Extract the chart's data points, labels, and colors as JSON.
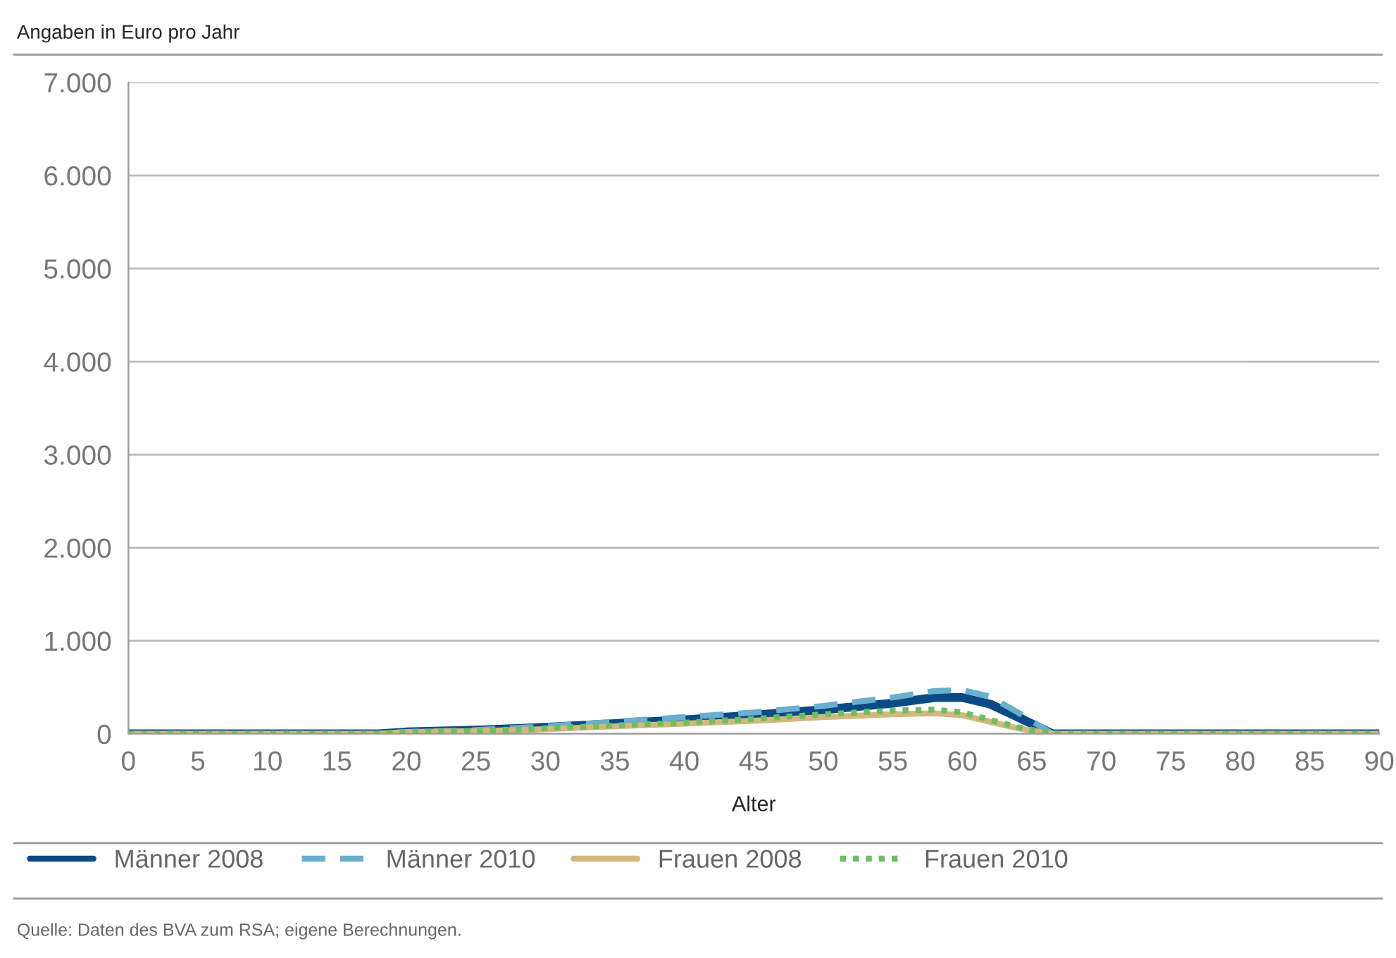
{
  "chart_data": {
    "type": "line",
    "ylabel": "Angaben in Euro pro Jahr",
    "xlabel": "Alter",
    "x": [
      0,
      18,
      20,
      25,
      30,
      35,
      40,
      45,
      50,
      55,
      58,
      60,
      62,
      64,
      66.5,
      67,
      90
    ],
    "series": [
      {
        "name": "Männer 2008",
        "color": "#0b4a85",
        "line_style": "solid",
        "values": [
          0,
          0,
          20,
          40,
          70,
          110,
          150,
          200,
          260,
          330,
          390,
          390,
          320,
          180,
          0,
          0,
          0
        ]
      },
      {
        "name": "Männer 2010",
        "color": "#6aaed0",
        "line_style": "dashed",
        "values": [
          0,
          0,
          20,
          40,
          80,
          130,
          180,
          230,
          300,
          390,
          460,
          470,
          400,
          230,
          0,
          0,
          0
        ]
      },
      {
        "name": "Frauen 2008",
        "color": "#d4b77e",
        "line_style": "solid",
        "values": [
          0,
          0,
          20,
          30,
          50,
          80,
          110,
          140,
          180,
          210,
          220,
          200,
          130,
          60,
          0,
          0,
          0
        ]
      },
      {
        "name": "Frauen 2010",
        "color": "#6bbf5f",
        "line_style": "dotted",
        "values": [
          0,
          0,
          20,
          30,
          60,
          90,
          120,
          160,
          210,
          250,
          260,
          230,
          150,
          70,
          0,
          0,
          0
        ]
      }
    ],
    "xlim": [
      0,
      90
    ],
    "xticks": [
      0,
      5,
      10,
      15,
      20,
      25,
      30,
      35,
      40,
      45,
      50,
      55,
      60,
      65,
      70,
      75,
      80,
      85,
      90
    ],
    "ylim": [
      0,
      7000
    ],
    "yticks": [
      0,
      {
        "value": 1000,
        "label": "1.000"
      },
      {
        "value": 2000,
        "label": "2.000"
      },
      {
        "value": 3000,
        "label": "3.000"
      },
      {
        "value": 4000,
        "label": "4.000"
      },
      {
        "value": 5000,
        "label": "5.000"
      },
      {
        "value": 6000,
        "label": "6.000"
      },
      {
        "value": 7000,
        "label": "7.000"
      }
    ],
    "grid": "y",
    "legend": "bottom",
    "marker": "none",
    "annotations": [
      "Quelle: Daten des BVA zum RSA; eigene Berechnungen."
    ]
  }
}
